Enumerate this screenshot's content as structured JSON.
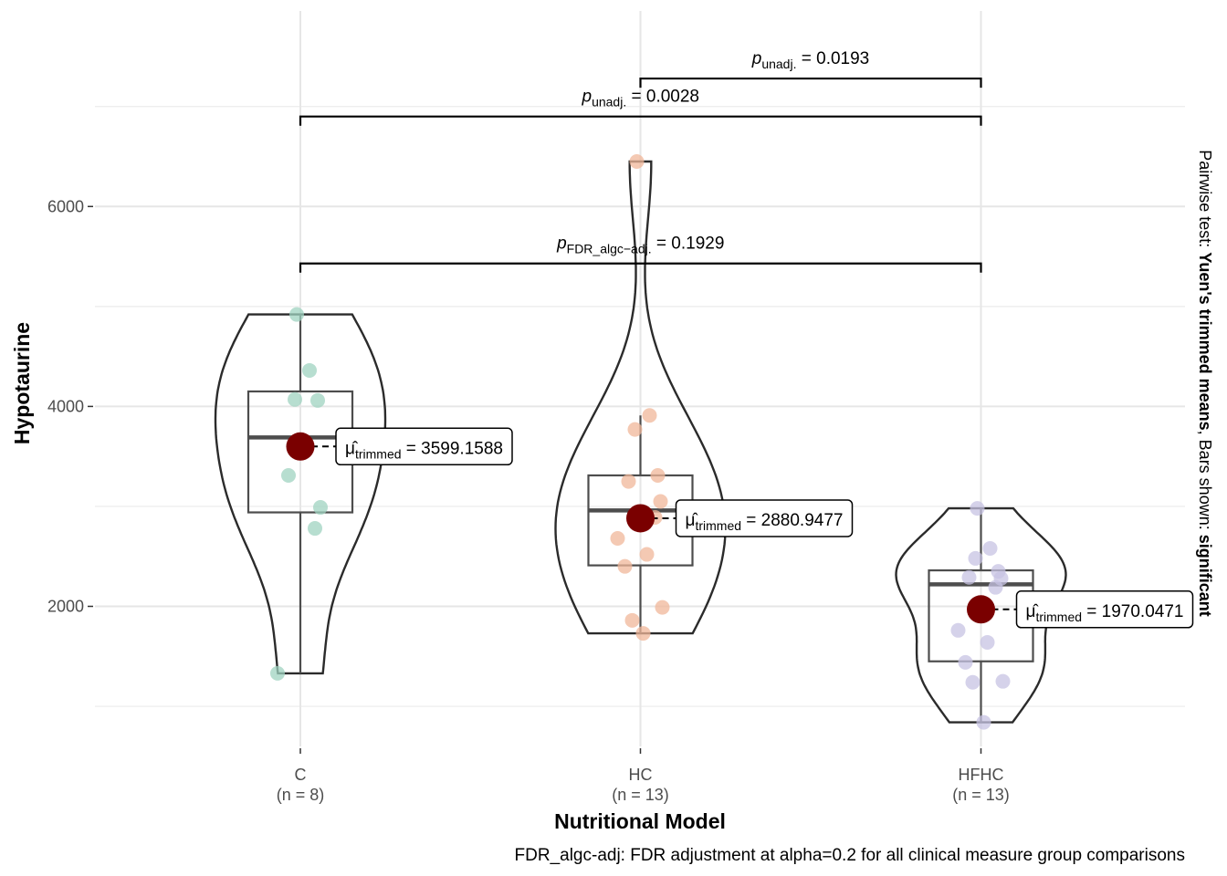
{
  "chart_data": {
    "type": "violin-box",
    "xlabel": "Nutritional Model",
    "ylabel": "Hypotaurine",
    "ylim": [
      600,
      7900
    ],
    "yticks": [
      2000,
      4000,
      6000
    ],
    "grid": true,
    "colors": {
      "C": "#9fd3c0",
      "HC": "#f0b79a",
      "HFHC": "#c7c3e3",
      "mean": "#7a0000"
    },
    "groups": [
      {
        "name": "C",
        "n_label": "(n = 8)",
        "points": [
          4920,
          4360,
          4070,
          4060,
          3310,
          2990,
          2780,
          1330
        ],
        "box": {
          "q1": 2940,
          "median": 3690,
          "q3": 4150,
          "min": 1330,
          "max": 4920
        },
        "violin_range": [
          1330,
          4920
        ],
        "mean": 3599.1588,
        "mean_label": "3599.1588"
      },
      {
        "name": "HC",
        "n_label": "(n = 13)",
        "points": [
          6450,
          3910,
          3770,
          3310,
          3250,
          3050,
          2890,
          2680,
          2520,
          2400,
          1990,
          1860,
          1730
        ],
        "box": {
          "q1": 2410,
          "median": 2960,
          "q3": 3310,
          "min": 1730,
          "max": 3910
        },
        "violin_range": [
          1730,
          6450
        ],
        "mean": 2880.9477,
        "mean_label": "2880.9477"
      },
      {
        "name": "HFHC",
        "n_label": "(n = 13)",
        "points": [
          2980,
          2580,
          2480,
          2350,
          2290,
          2280,
          2190,
          1760,
          1640,
          1440,
          1250,
          1240,
          840
        ],
        "box": {
          "q1": 1450,
          "median": 2220,
          "q3": 2360,
          "min": 840,
          "max": 2980
        },
        "violin_range": [
          840,
          2980
        ],
        "mean": 1970.0471,
        "mean_label": "1970.0471"
      }
    ],
    "comparisons": [
      {
        "from": "HC",
        "to": "HFHC",
        "y": 7280,
        "p_symbol": "p",
        "p_sub": "unadj.",
        "p_value": " = 0.0193"
      },
      {
        "from": "C",
        "to": "HFHC",
        "y": 6900,
        "p_symbol": "p",
        "p_sub": "unadj.",
        "p_value": " = 0.0028"
      },
      {
        "from": "C",
        "to": "HFHC",
        "y": 5430,
        "p_symbol": "p",
        "p_sub": "FDR_algc−adj.",
        "p_value": " = 0.1929"
      }
    ],
    "mean_label_prefix": "μ̂",
    "mean_label_sub": "trimmed",
    "side_title": {
      "prefix": "Pairwise test: ",
      "test": "Yuen's trimmed means",
      "middle": ", Bars shown: ",
      "shown": "significant"
    },
    "caption": "FDR_algc-adj: FDR adjustment at alpha=0.2 for all clinical measure group comparisons"
  }
}
